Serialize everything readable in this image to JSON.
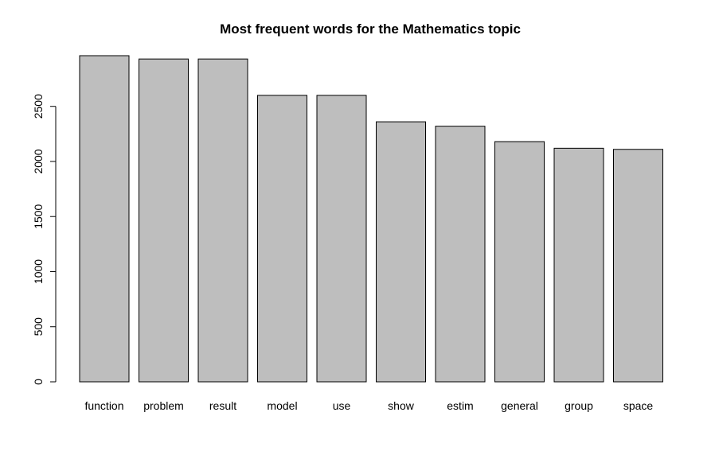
{
  "chart_data": {
    "type": "bar",
    "title": "Most frequent words for the Mathematics topic",
    "xlabel": "",
    "ylabel": "",
    "categories": [
      "function",
      "problem",
      "result",
      "model",
      "use",
      "show",
      "estim",
      "general",
      "group",
      "space"
    ],
    "values": [
      2960,
      2930,
      2930,
      2600,
      2600,
      2360,
      2320,
      2180,
      2120,
      2110
    ],
    "ylim": [
      0,
      2960
    ],
    "yticks": [
      0,
      500,
      1000,
      1500,
      2000,
      2500
    ],
    "grid": false,
    "legend": "none",
    "bar_fill": "#bebebe",
    "bar_stroke": "#000000"
  }
}
